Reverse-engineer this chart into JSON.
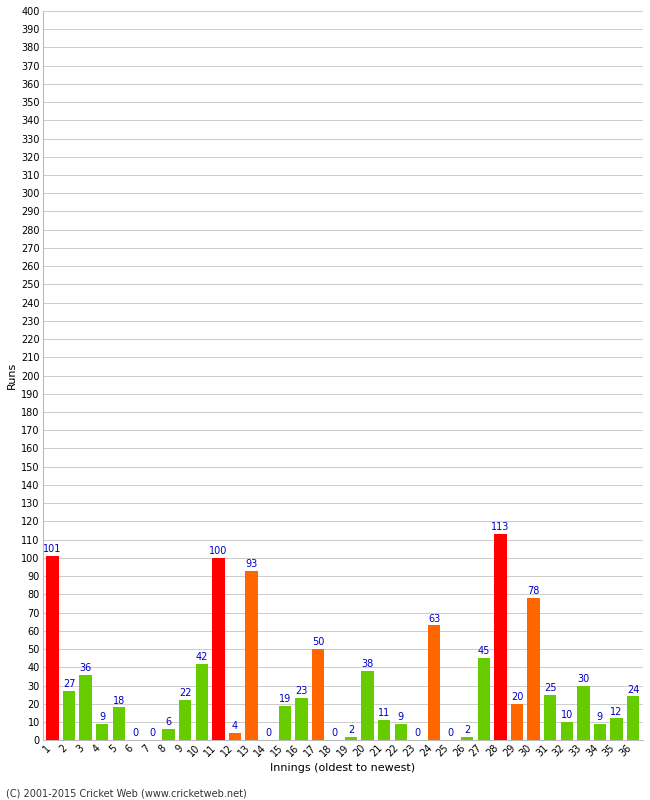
{
  "xlabel": "Innings (oldest to newest)",
  "ylabel": "Runs",
  "footer": "(C) 2001-2015 Cricket Web (www.cricketweb.net)",
  "ylim": [
    0,
    400
  ],
  "ytick_step": 10,
  "innings": [
    1,
    2,
    3,
    4,
    5,
    6,
    7,
    8,
    9,
    10,
    11,
    12,
    13,
    14,
    15,
    16,
    17,
    18,
    19,
    20,
    21,
    22,
    23,
    24,
    25,
    26,
    27,
    28,
    29,
    30,
    31,
    32,
    33,
    34,
    35,
    36
  ],
  "values": [
    101,
    27,
    36,
    9,
    18,
    0,
    0,
    6,
    22,
    42,
    100,
    4,
    93,
    0,
    19,
    23,
    50,
    0,
    2,
    38,
    11,
    9,
    0,
    63,
    0,
    2,
    45,
    113,
    20,
    78,
    25,
    10,
    30,
    9,
    12,
    24
  ],
  "colors": [
    "#ff0000",
    "#66cc00",
    "#66cc00",
    "#66cc00",
    "#66cc00",
    "#66cc00",
    "#66cc00",
    "#66cc00",
    "#66cc00",
    "#66cc00",
    "#ff0000",
    "#ff6600",
    "#ff6600",
    "#66cc00",
    "#66cc00",
    "#66cc00",
    "#ff6600",
    "#66cc00",
    "#66cc00",
    "#66cc00",
    "#66cc00",
    "#66cc00",
    "#66cc00",
    "#ff6600",
    "#66cc00",
    "#66cc00",
    "#66cc00",
    "#ff0000",
    "#ff6600",
    "#ff6600",
    "#66cc00",
    "#66cc00",
    "#66cc00",
    "#66cc00",
    "#66cc00",
    "#66cc00"
  ],
  "label_color": "#0000cc",
  "bg_color": "#ffffff",
  "grid_color": "#cccccc",
  "label_fontsize": 7,
  "axis_fontsize": 7,
  "footer_fontsize": 7
}
